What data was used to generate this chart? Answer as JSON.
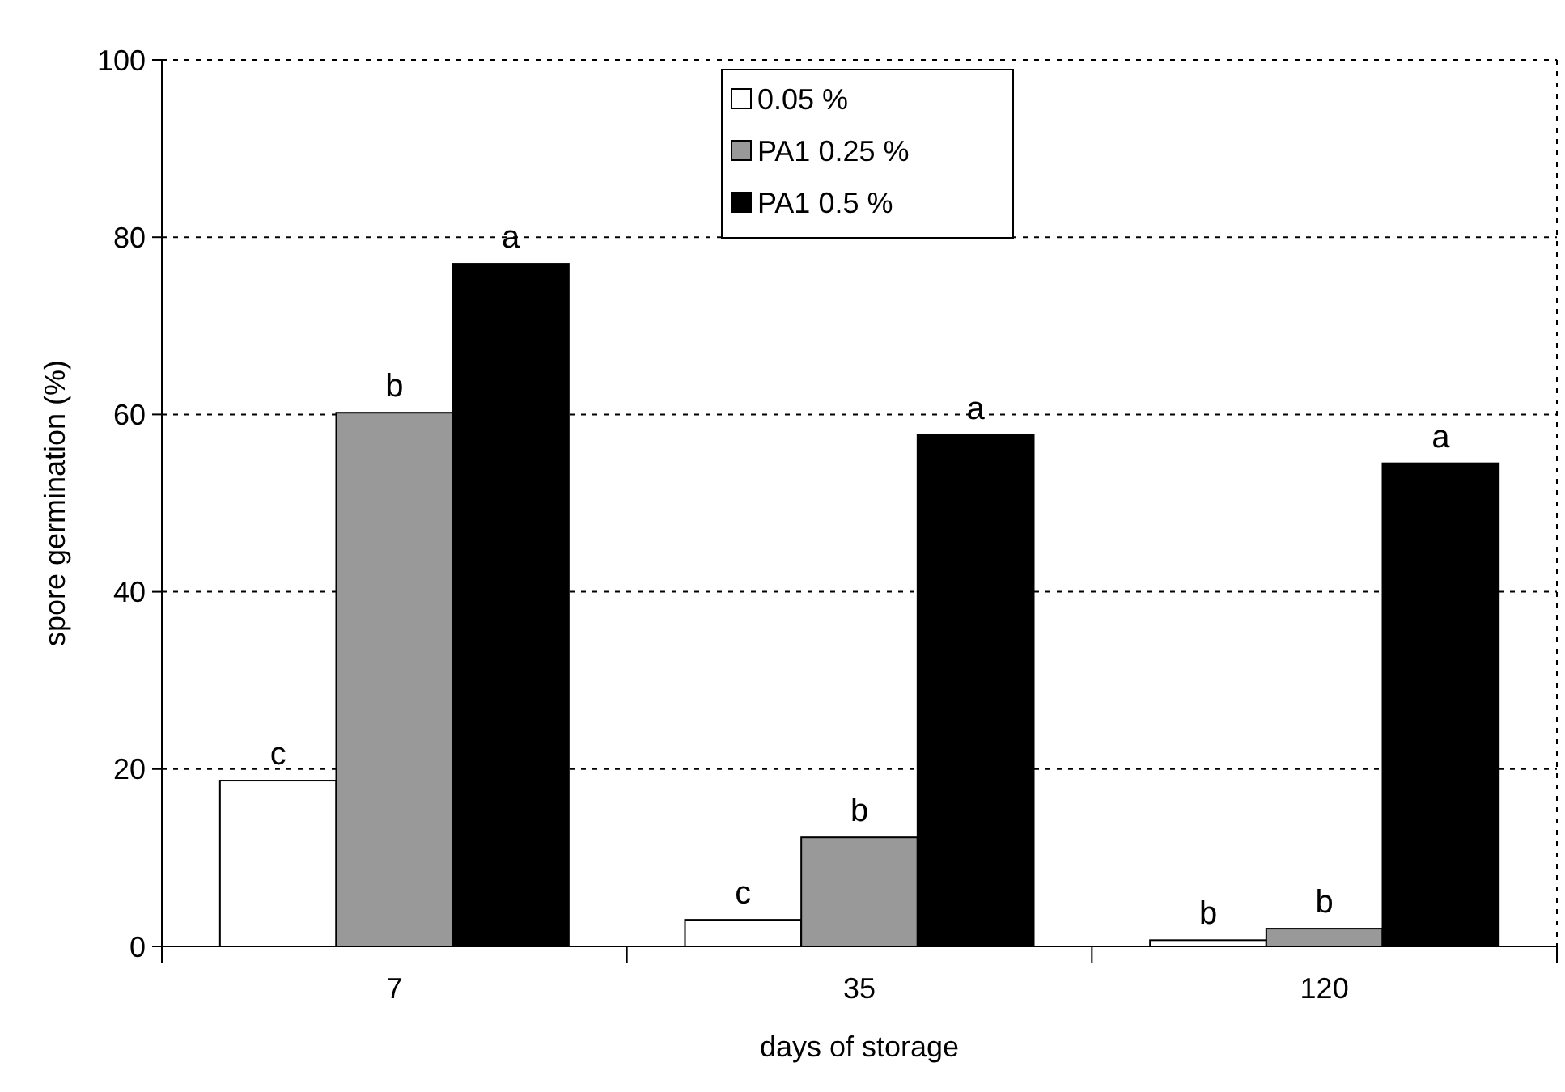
{
  "chart_data": {
    "type": "bar",
    "xlabel": "days of storage",
    "ylabel": "spore germination (%)",
    "categories": [
      "7",
      "35",
      "120"
    ],
    "series": [
      {
        "name": "0.05 %",
        "color": "#ffffff",
        "values": [
          18.7,
          3,
          0.7
        ],
        "value_labels": [
          "c",
          "c",
          "b"
        ]
      },
      {
        "name": "PA1 0.25 %",
        "color": "#999999",
        "values": [
          60.2,
          12.3,
          2
        ],
        "value_labels": [
          "b",
          "b",
          "b"
        ]
      },
      {
        "name": "PA1 0.5 %",
        "color": "#000000",
        "values": [
          77,
          57.7,
          54.5
        ],
        "value_labels": [
          "a",
          "a",
          "a"
        ]
      }
    ],
    "ylim": [
      0,
      100
    ],
    "yticks": [
      0,
      20,
      40,
      60,
      80,
      100
    ],
    "grid": "y",
    "legend": "top"
  }
}
